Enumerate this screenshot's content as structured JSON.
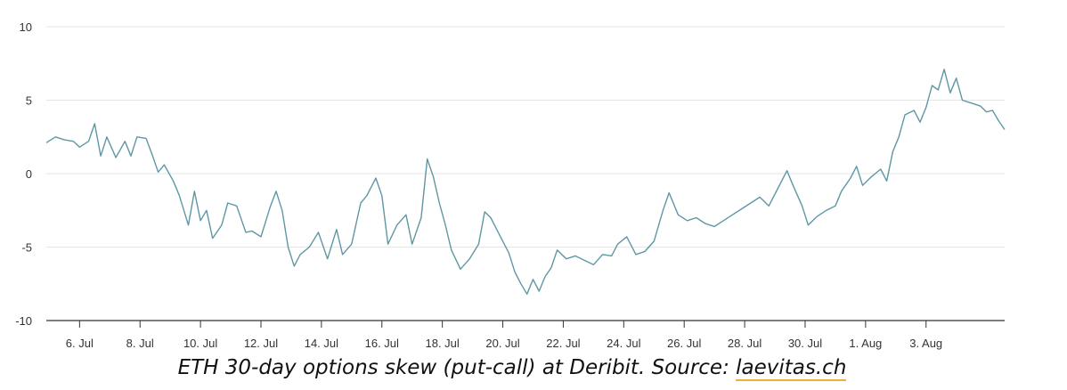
{
  "colors": {
    "line": "#5f97a5",
    "grid": "#e6e6e6",
    "axis": "#333333",
    "tick_label": "#333333",
    "link_underline": "#e8b339"
  },
  "caption": {
    "text": "ETH 30-day options skew (put-call) at Deribit. Source: ",
    "link": "laevitas.ch"
  },
  "chart_data": {
    "type": "line",
    "title": "",
    "xlabel": "",
    "ylabel": "",
    "ylim": [
      -10,
      10
    ],
    "yticks": [
      10,
      5,
      0,
      -5,
      -10
    ],
    "ytick_labels": [
      "10",
      "5",
      "0",
      "-5",
      "-10"
    ],
    "xlim": [
      4.9,
      36.6
    ],
    "xticks": [
      6,
      8,
      10,
      12,
      14,
      16,
      18,
      20,
      22,
      24,
      26,
      28,
      30,
      32,
      34
    ],
    "xtick_labels": [
      "6. Jul",
      "8. Jul",
      "10. Jul",
      "12. Jul",
      "14. Jul",
      "16. Jul",
      "18. Jul",
      "20. Jul",
      "22. Jul",
      "24. Jul",
      "26. Jul",
      "28. Jul",
      "30. Jul",
      "1. Aug",
      "3. Aug"
    ],
    "grid": true,
    "series": [
      {
        "points": [
          [
            4.9,
            2.1
          ],
          [
            5.2,
            2.5
          ],
          [
            5.5,
            2.3
          ],
          [
            5.8,
            2.2
          ],
          [
            6.0,
            1.8
          ],
          [
            6.3,
            2.2
          ],
          [
            6.5,
            3.4
          ],
          [
            6.7,
            1.2
          ],
          [
            6.9,
            2.5
          ],
          [
            7.2,
            1.1
          ],
          [
            7.5,
            2.2
          ],
          [
            7.7,
            1.2
          ],
          [
            7.9,
            2.5
          ],
          [
            8.2,
            2.4
          ],
          [
            8.4,
            1.3
          ],
          [
            8.6,
            0.1
          ],
          [
            8.8,
            0.6
          ],
          [
            9.1,
            -0.5
          ],
          [
            9.3,
            -1.5
          ],
          [
            9.6,
            -3.5
          ],
          [
            9.8,
            -1.2
          ],
          [
            10.0,
            -3.2
          ],
          [
            10.2,
            -2.5
          ],
          [
            10.4,
            -4.4
          ],
          [
            10.7,
            -3.5
          ],
          [
            10.9,
            -2.0
          ],
          [
            11.2,
            -2.2
          ],
          [
            11.5,
            -4.0
          ],
          [
            11.7,
            -3.9
          ],
          [
            12.0,
            -4.3
          ],
          [
            12.3,
            -2.3
          ],
          [
            12.5,
            -1.2
          ],
          [
            12.7,
            -2.5
          ],
          [
            12.9,
            -5.0
          ],
          [
            13.1,
            -6.3
          ],
          [
            13.3,
            -5.5
          ],
          [
            13.6,
            -5.0
          ],
          [
            13.9,
            -4.0
          ],
          [
            14.2,
            -5.8
          ],
          [
            14.5,
            -3.8
          ],
          [
            14.7,
            -5.5
          ],
          [
            15.0,
            -4.8
          ],
          [
            15.3,
            -2.0
          ],
          [
            15.5,
            -1.5
          ],
          [
            15.8,
            -0.3
          ],
          [
            16.0,
            -1.5
          ],
          [
            16.2,
            -4.8
          ],
          [
            16.5,
            -3.5
          ],
          [
            16.8,
            -2.8
          ],
          [
            17.0,
            -4.8
          ],
          [
            17.3,
            -3.0
          ],
          [
            17.5,
            1.0
          ],
          [
            17.7,
            -0.2
          ],
          [
            17.9,
            -2.0
          ],
          [
            18.1,
            -3.5
          ],
          [
            18.3,
            -5.2
          ],
          [
            18.6,
            -6.5
          ],
          [
            18.9,
            -5.8
          ],
          [
            19.2,
            -4.8
          ],
          [
            19.4,
            -2.6
          ],
          [
            19.6,
            -3.0
          ],
          [
            19.9,
            -4.2
          ],
          [
            20.2,
            -5.4
          ],
          [
            20.4,
            -6.7
          ],
          [
            20.6,
            -7.5
          ],
          [
            20.8,
            -8.2
          ],
          [
            21.0,
            -7.2
          ],
          [
            21.2,
            -8.0
          ],
          [
            21.4,
            -7.0
          ],
          [
            21.6,
            -6.4
          ],
          [
            21.8,
            -5.2
          ],
          [
            22.1,
            -5.8
          ],
          [
            22.4,
            -5.6
          ],
          [
            22.7,
            -5.9
          ],
          [
            23.0,
            -6.2
          ],
          [
            23.3,
            -5.5
          ],
          [
            23.6,
            -5.6
          ],
          [
            23.8,
            -4.8
          ],
          [
            24.1,
            -4.3
          ],
          [
            24.4,
            -5.5
          ],
          [
            24.7,
            -5.3
          ],
          [
            25.0,
            -4.6
          ],
          [
            25.3,
            -2.5
          ],
          [
            25.5,
            -1.3
          ],
          [
            25.8,
            -2.8
          ],
          [
            26.1,
            -3.2
          ],
          [
            26.4,
            -3.0
          ],
          [
            26.7,
            -3.4
          ],
          [
            27.0,
            -3.6
          ],
          [
            27.3,
            -3.2
          ],
          [
            27.6,
            -2.8
          ],
          [
            27.9,
            -2.4
          ],
          [
            28.2,
            -2.0
          ],
          [
            28.5,
            -1.6
          ],
          [
            28.8,
            -2.2
          ],
          [
            29.1,
            -1.0
          ],
          [
            29.4,
            0.2
          ],
          [
            29.6,
            -0.8
          ],
          [
            29.9,
            -2.2
          ],
          [
            30.1,
            -3.5
          ],
          [
            30.4,
            -2.9
          ],
          [
            30.7,
            -2.5
          ],
          [
            31.0,
            -2.2
          ],
          [
            31.2,
            -1.2
          ],
          [
            31.5,
            -0.3
          ],
          [
            31.7,
            0.5
          ],
          [
            31.9,
            -0.8
          ],
          [
            32.2,
            -0.2
          ],
          [
            32.5,
            0.3
          ],
          [
            32.7,
            -0.5
          ],
          [
            32.9,
            1.5
          ],
          [
            33.1,
            2.5
          ],
          [
            33.3,
            4.0
          ],
          [
            33.6,
            4.3
          ],
          [
            33.8,
            3.5
          ],
          [
            34.0,
            4.5
          ],
          [
            34.2,
            6.0
          ],
          [
            34.4,
            5.7
          ],
          [
            34.6,
            7.1
          ],
          [
            34.8,
            5.5
          ],
          [
            35.0,
            6.5
          ],
          [
            35.2,
            5.0
          ],
          [
            35.5,
            4.8
          ],
          [
            35.8,
            4.6
          ],
          [
            36.0,
            4.2
          ],
          [
            36.2,
            4.3
          ],
          [
            36.4,
            3.6
          ],
          [
            36.6,
            3.0
          ]
        ]
      }
    ]
  }
}
